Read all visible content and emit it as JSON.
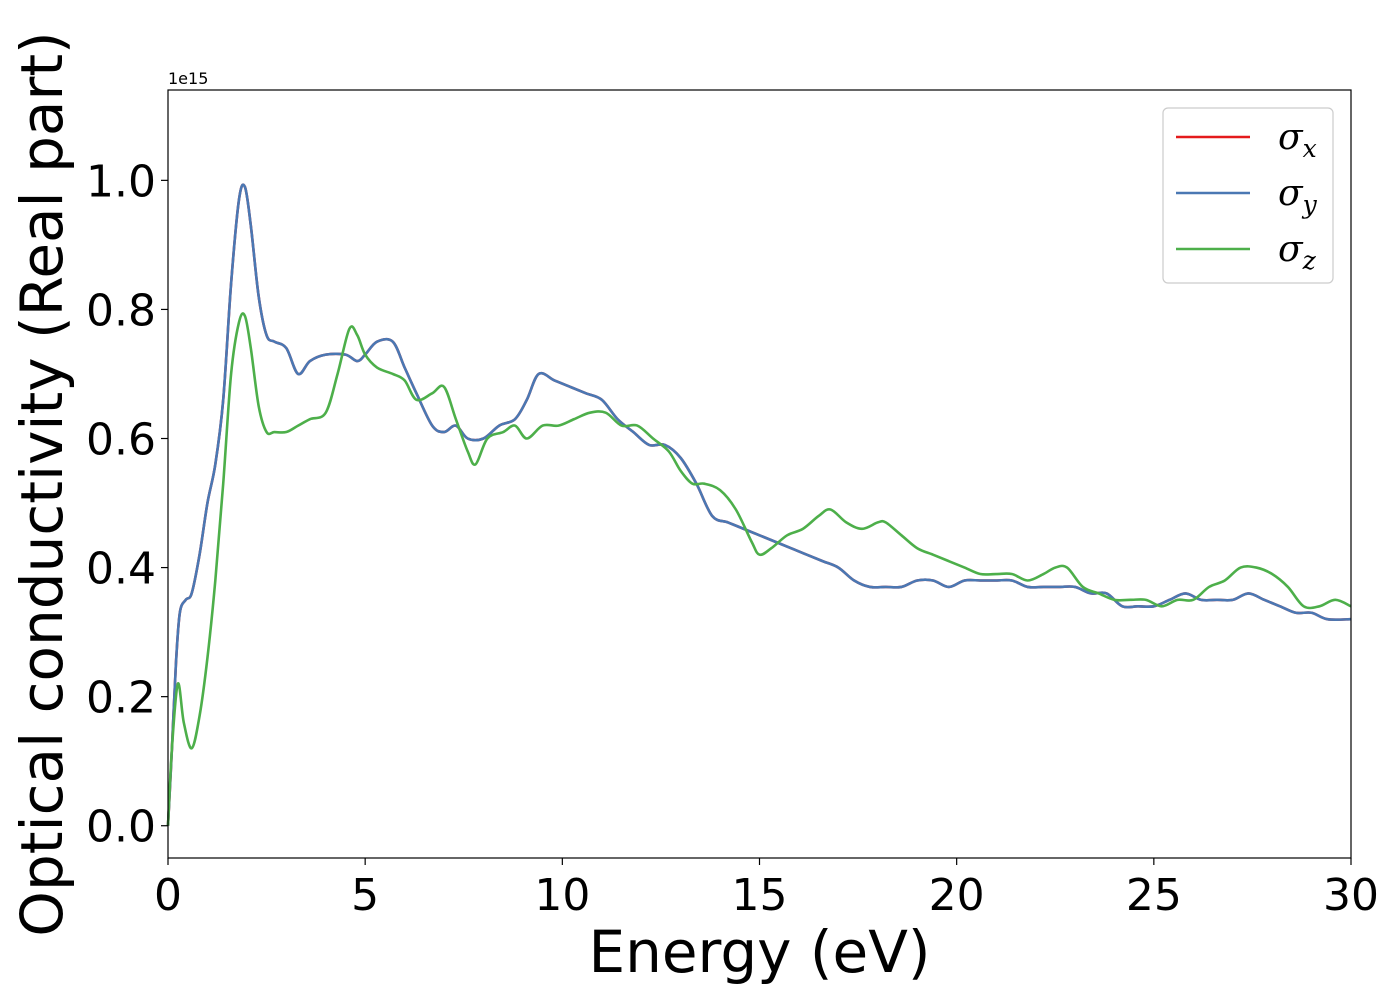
{
  "chart_data": {
    "type": "line",
    "xlabel": "Energy (eV)",
    "ylabel": "Optical conductivity (Real part)",
    "y_offset_text": "1e15",
    "y_scale_note": "values in units of 1e15",
    "xlim": [
      0,
      30
    ],
    "ylim": [
      -0.05,
      1.14
    ],
    "x_ticks": [
      0,
      5,
      10,
      15,
      20,
      25,
      30
    ],
    "x_tick_labels": [
      "0",
      "5",
      "10",
      "15",
      "20",
      "25",
      "30"
    ],
    "y_ticks": [
      0.0,
      0.2,
      0.4,
      0.6,
      0.8,
      1.0
    ],
    "y_tick_labels": [
      "0.0",
      "0.2",
      "0.4",
      "0.6",
      "0.8",
      "1.0"
    ],
    "grid": false,
    "legend_position": "top-right",
    "series": [
      {
        "name": "σ",
        "subscript": "x",
        "color": "#e41a1c",
        "x": [
          0,
          0.1,
          0.2,
          0.3,
          0.45,
          0.6,
          0.8,
          1.0,
          1.2,
          1.4,
          1.6,
          1.8,
          1.95,
          2.1,
          2.3,
          2.5,
          2.7,
          3.0,
          3.3,
          3.6,
          4.0,
          4.5,
          4.8,
          5.0,
          5.3,
          5.7,
          6.0,
          6.3,
          6.7,
          7.0,
          7.3,
          7.6,
          8.0,
          8.4,
          8.8,
          9.1,
          9.4,
          9.8,
          10.2,
          10.6,
          11.0,
          11.4,
          11.8,
          12.2,
          12.6,
          13.0,
          13.4,
          13.8,
          14.2,
          14.6,
          15.0,
          15.4,
          15.8,
          16.2,
          16.6,
          17.0,
          17.4,
          17.8,
          18.2,
          18.6,
          19.0,
          19.4,
          19.8,
          20.2,
          20.6,
          21.0,
          21.4,
          21.8,
          22.2,
          22.6,
          23.0,
          23.4,
          23.8,
          24.2,
          24.6,
          25.0,
          25.4,
          25.8,
          26.2,
          26.6,
          27.0,
          27.4,
          27.8,
          28.2,
          28.6,
          29.0,
          29.4,
          30.0
        ],
        "y": [
          0.0,
          0.12,
          0.25,
          0.33,
          0.35,
          0.36,
          0.42,
          0.5,
          0.56,
          0.66,
          0.84,
          0.97,
          0.99,
          0.93,
          0.82,
          0.76,
          0.75,
          0.74,
          0.7,
          0.72,
          0.73,
          0.73,
          0.72,
          0.73,
          0.75,
          0.75,
          0.71,
          0.67,
          0.62,
          0.61,
          0.62,
          0.6,
          0.6,
          0.62,
          0.63,
          0.66,
          0.7,
          0.69,
          0.68,
          0.67,
          0.66,
          0.63,
          0.61,
          0.59,
          0.59,
          0.57,
          0.53,
          0.48,
          0.47,
          0.46,
          0.45,
          0.44,
          0.43,
          0.42,
          0.41,
          0.4,
          0.38,
          0.37,
          0.37,
          0.37,
          0.38,
          0.38,
          0.37,
          0.38,
          0.38,
          0.38,
          0.38,
          0.37,
          0.37,
          0.37,
          0.37,
          0.36,
          0.36,
          0.34,
          0.34,
          0.34,
          0.35,
          0.36,
          0.35,
          0.35,
          0.35,
          0.36,
          0.35,
          0.34,
          0.33,
          0.33,
          0.32,
          0.32
        ]
      },
      {
        "name": "σ",
        "subscript": "y",
        "color": "#4a78b3",
        "x": [
          0,
          0.1,
          0.2,
          0.3,
          0.45,
          0.6,
          0.8,
          1.0,
          1.2,
          1.4,
          1.6,
          1.8,
          1.95,
          2.1,
          2.3,
          2.5,
          2.7,
          3.0,
          3.3,
          3.6,
          4.0,
          4.5,
          4.8,
          5.0,
          5.3,
          5.7,
          6.0,
          6.3,
          6.7,
          7.0,
          7.3,
          7.6,
          8.0,
          8.4,
          8.8,
          9.1,
          9.4,
          9.8,
          10.2,
          10.6,
          11.0,
          11.4,
          11.8,
          12.2,
          12.6,
          13.0,
          13.4,
          13.8,
          14.2,
          14.6,
          15.0,
          15.4,
          15.8,
          16.2,
          16.6,
          17.0,
          17.4,
          17.8,
          18.2,
          18.6,
          19.0,
          19.4,
          19.8,
          20.2,
          20.6,
          21.0,
          21.4,
          21.8,
          22.2,
          22.6,
          23.0,
          23.4,
          23.8,
          24.2,
          24.6,
          25.0,
          25.4,
          25.8,
          26.2,
          26.6,
          27.0,
          27.4,
          27.8,
          28.2,
          28.6,
          29.0,
          29.4,
          30.0
        ],
        "y": [
          0.0,
          0.12,
          0.25,
          0.33,
          0.35,
          0.36,
          0.42,
          0.5,
          0.56,
          0.66,
          0.84,
          0.97,
          0.99,
          0.93,
          0.82,
          0.76,
          0.75,
          0.74,
          0.7,
          0.72,
          0.73,
          0.73,
          0.72,
          0.73,
          0.75,
          0.75,
          0.71,
          0.67,
          0.62,
          0.61,
          0.62,
          0.6,
          0.6,
          0.62,
          0.63,
          0.66,
          0.7,
          0.69,
          0.68,
          0.67,
          0.66,
          0.63,
          0.61,
          0.59,
          0.59,
          0.57,
          0.53,
          0.48,
          0.47,
          0.46,
          0.45,
          0.44,
          0.43,
          0.42,
          0.41,
          0.4,
          0.38,
          0.37,
          0.37,
          0.37,
          0.38,
          0.38,
          0.37,
          0.38,
          0.38,
          0.38,
          0.38,
          0.37,
          0.37,
          0.37,
          0.37,
          0.36,
          0.36,
          0.34,
          0.34,
          0.34,
          0.35,
          0.36,
          0.35,
          0.35,
          0.35,
          0.36,
          0.35,
          0.34,
          0.33,
          0.33,
          0.32,
          0.32
        ]
      },
      {
        "name": "σ",
        "subscript": "z",
        "color": "#4daf4a",
        "x": [
          0,
          0.1,
          0.25,
          0.4,
          0.6,
          0.8,
          1.0,
          1.2,
          1.4,
          1.6,
          1.8,
          1.95,
          2.1,
          2.3,
          2.5,
          2.7,
          3.0,
          3.3,
          3.6,
          4.0,
          4.3,
          4.6,
          4.8,
          5.0,
          5.3,
          5.7,
          6.0,
          6.3,
          6.7,
          7.0,
          7.3,
          7.6,
          7.8,
          8.1,
          8.5,
          8.8,
          9.1,
          9.5,
          9.9,
          10.3,
          10.7,
          11.1,
          11.5,
          11.9,
          12.3,
          12.7,
          13.0,
          13.3,
          13.6,
          14.0,
          14.4,
          14.8,
          15.0,
          15.3,
          15.7,
          16.1,
          16.5,
          16.8,
          17.2,
          17.6,
          18.0,
          18.2,
          18.6,
          19.0,
          19.4,
          19.8,
          20.2,
          20.6,
          21.0,
          21.4,
          21.8,
          22.2,
          22.5,
          22.8,
          23.2,
          23.6,
          24.0,
          24.4,
          24.8,
          25.2,
          25.6,
          26.0,
          26.4,
          26.8,
          27.2,
          27.6,
          28.0,
          28.4,
          28.8,
          29.2,
          29.6,
          30.0
        ],
        "y": [
          0.0,
          0.12,
          0.22,
          0.16,
          0.12,
          0.17,
          0.26,
          0.38,
          0.53,
          0.7,
          0.78,
          0.79,
          0.74,
          0.65,
          0.61,
          0.61,
          0.61,
          0.62,
          0.63,
          0.64,
          0.7,
          0.77,
          0.76,
          0.73,
          0.71,
          0.7,
          0.69,
          0.66,
          0.67,
          0.68,
          0.63,
          0.58,
          0.56,
          0.6,
          0.61,
          0.62,
          0.6,
          0.62,
          0.62,
          0.63,
          0.64,
          0.64,
          0.62,
          0.62,
          0.6,
          0.58,
          0.55,
          0.53,
          0.53,
          0.52,
          0.49,
          0.44,
          0.42,
          0.43,
          0.45,
          0.46,
          0.48,
          0.49,
          0.47,
          0.46,
          0.47,
          0.47,
          0.45,
          0.43,
          0.42,
          0.41,
          0.4,
          0.39,
          0.39,
          0.39,
          0.38,
          0.39,
          0.4,
          0.4,
          0.37,
          0.36,
          0.35,
          0.35,
          0.35,
          0.34,
          0.35,
          0.35,
          0.37,
          0.38,
          0.4,
          0.4,
          0.39,
          0.37,
          0.34,
          0.34,
          0.35,
          0.34
        ]
      }
    ]
  }
}
